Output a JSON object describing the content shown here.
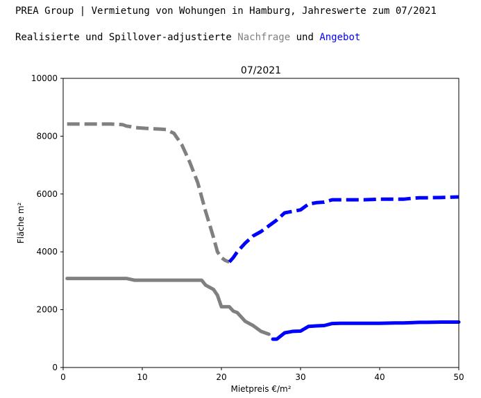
{
  "header": {
    "title": "PREA Group | Vermietung von Wohungen in Hamburg, Jahreswerte zum 07/2021",
    "subtitle_prefix": "Realisierte und Spillover-adjustierte ",
    "subtitle_demand": "Nachfrage",
    "subtitle_and": " und ",
    "subtitle_supply": "Angebot"
  },
  "colors": {
    "demand": "#808080",
    "supply": "#0000ff"
  },
  "chart_data": {
    "type": "line",
    "title": "07/2021",
    "xlabel": "Mietpreis €/m²",
    "ylabel": "Fläche m²",
    "xlim": [
      0,
      50
    ],
    "ylim": [
      0,
      10000
    ],
    "xticks": [
      0,
      10,
      20,
      30,
      40,
      50
    ],
    "yticks": [
      0,
      2000,
      4000,
      6000,
      8000,
      10000
    ],
    "series": [
      {
        "style": "dashed",
        "color": "#808080",
        "x": [
          0.5,
          2,
          4,
          6,
          7.5,
          8,
          8.5,
          9,
          10,
          11,
          12,
          13,
          14,
          15,
          16,
          17,
          18,
          19,
          19.5,
          20,
          20.5,
          21
        ],
        "y": [
          8420,
          8420,
          8420,
          8420,
          8400,
          8350,
          8330,
          8300,
          8280,
          8260,
          8250,
          8230,
          8100,
          7700,
          7100,
          6400,
          5400,
          4500,
          4000,
          3800,
          3700,
          3650
        ]
      },
      {
        "style": "dashed",
        "color": "#0000ff",
        "x": [
          21,
          21.5,
          22,
          23,
          24,
          25,
          26,
          27,
          28,
          29,
          30,
          31,
          32,
          33,
          34,
          35,
          36,
          38,
          40,
          42,
          43,
          44,
          45,
          46,
          48,
          50
        ],
        "y": [
          3650,
          3800,
          4000,
          4300,
          4550,
          4700,
          4900,
          5100,
          5350,
          5400,
          5450,
          5650,
          5700,
          5720,
          5800,
          5800,
          5800,
          5800,
          5820,
          5820,
          5820,
          5850,
          5870,
          5870,
          5880,
          5900
        ]
      },
      {
        "style": "solid",
        "color": "#808080",
        "x": [
          0.5,
          2,
          4,
          6,
          8,
          8.5,
          9,
          10,
          12,
          14,
          16,
          17.5,
          18,
          19,
          19.5,
          20,
          21,
          21.5,
          22,
          23,
          24,
          25,
          26
        ],
        "y": [
          3080,
          3080,
          3080,
          3080,
          3080,
          3050,
          3020,
          3020,
          3020,
          3020,
          3020,
          3020,
          2850,
          2700,
          2500,
          2100,
          2100,
          1950,
          1900,
          1600,
          1450,
          1250,
          1150
        ]
      },
      {
        "style": "solid",
        "color": "#0000ff",
        "x": [
          26.5,
          27,
          28,
          29,
          30,
          31,
          32,
          33,
          34,
          35,
          36,
          38,
          40,
          42,
          43,
          44,
          45,
          46,
          48,
          50
        ],
        "y": [
          980,
          980,
          1200,
          1250,
          1260,
          1420,
          1440,
          1450,
          1520,
          1530,
          1530,
          1530,
          1530,
          1540,
          1540,
          1550,
          1560,
          1560,
          1570,
          1570
        ]
      }
    ]
  }
}
